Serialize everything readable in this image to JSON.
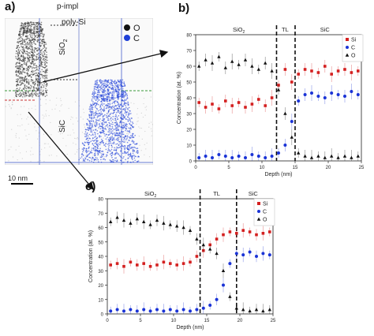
{
  "panels": {
    "a": {
      "label": "a)",
      "title": "p-impl",
      "layer_top": "poly-Si",
      "sio2": "SiO",
      "sio2_sub": "2",
      "sic": "SiC",
      "scale": "10 nm",
      "legend": [
        {
          "label": "O",
          "color": "#111111"
        },
        {
          "label": "C",
          "color": "#1e3fd8"
        }
      ]
    },
    "b": {
      "label": "b)"
    },
    "c": {
      "label": "c)"
    }
  },
  "colors": {
    "Si": "#d42020",
    "C": "#1a33d6",
    "O": "#111111"
  },
  "chart_data": [
    {
      "id": "b",
      "type": "scatter",
      "xlabel": "Depth (nm)",
      "ylabel": "Concentration (at. %)",
      "xlim": [
        0,
        25
      ],
      "ylim": [
        0,
        80
      ],
      "xticks": [
        0,
        5,
        10,
        15,
        20,
        25
      ],
      "yticks": [
        0,
        10,
        20,
        30,
        40,
        50,
        60,
        70,
        80
      ],
      "regions": [
        {
          "label": "SiO",
          "sub": "2",
          "x": 6.5
        },
        {
          "label": "TL",
          "x": 13.5
        },
        {
          "label": "SiC",
          "x": 19.5
        }
      ],
      "boundaries": [
        12.2,
        15.0
      ],
      "series": [
        {
          "name": "Si",
          "marker": "square",
          "x": [
            0.5,
            1.5,
            2.5,
            3.5,
            4.5,
            5.5,
            6.5,
            7.5,
            8.5,
            9.5,
            10.5,
            11.5,
            12.5,
            13.5,
            14.5,
            15.5,
            16.5,
            17.5,
            18.5,
            19.5,
            20.5,
            21.5,
            22.5,
            23.5,
            24.5
          ],
          "y": [
            37,
            34,
            36,
            33,
            38,
            35,
            37,
            34,
            36,
            39,
            35,
            40,
            48,
            58,
            50,
            55,
            58,
            57,
            56,
            60,
            55,
            57,
            58,
            56,
            57
          ]
        },
        {
          "name": "C",
          "marker": "circle",
          "x": [
            0.5,
            1.5,
            2.5,
            3.5,
            4.5,
            5.5,
            6.5,
            7.5,
            8.5,
            9.5,
            10.5,
            11.5,
            12.5,
            13.5,
            14.5,
            15.5,
            16.5,
            17.5,
            18.5,
            19.5,
            20.5,
            21.5,
            22.5,
            23.5,
            24.5
          ],
          "y": [
            2,
            3,
            2,
            4,
            3,
            2,
            3,
            2,
            4,
            3,
            2,
            3,
            5,
            10,
            25,
            38,
            42,
            43,
            41,
            40,
            43,
            42,
            41,
            44,
            42
          ]
        },
        {
          "name": "O",
          "marker": "triangle",
          "x": [
            0.5,
            1.5,
            2.5,
            3.5,
            4.5,
            5.5,
            6.5,
            7.5,
            8.5,
            9.5,
            10.5,
            11.5,
            12.5,
            13.5,
            14.5,
            15.5,
            16.5,
            17.5,
            18.5,
            19.5,
            20.5,
            21.5,
            22.5,
            23.5,
            24.5
          ],
          "y": [
            60,
            64,
            62,
            66,
            59,
            63,
            61,
            64,
            60,
            58,
            62,
            57,
            45,
            30,
            15,
            5,
            3,
            2,
            3,
            2,
            3,
            2,
            3,
            2,
            3
          ]
        }
      ],
      "legend": [
        "Si",
        "C",
        "O"
      ]
    },
    {
      "id": "c",
      "type": "scatter",
      "xlabel": "Depth (nm)",
      "ylabel": "Concentration (at. %)",
      "xlim": [
        0,
        25
      ],
      "ylim": [
        0,
        80
      ],
      "xticks": [
        0,
        5,
        10,
        15,
        20,
        25
      ],
      "yticks": [
        0,
        10,
        20,
        30,
        40,
        50,
        60,
        70,
        80
      ],
      "regions": [
        {
          "label": "SiO",
          "sub": "2",
          "x": 6.5
        },
        {
          "label": "TL",
          "x": 16.5
        },
        {
          "label": "SiC",
          "x": 22.0
        }
      ],
      "boundaries": [
        14.0,
        19.5
      ],
      "series": [
        {
          "name": "Si",
          "marker": "square",
          "x": [
            0.5,
            1.5,
            2.5,
            3.5,
            4.5,
            5.5,
            6.5,
            7.5,
            8.5,
            9.5,
            10.5,
            11.5,
            12.5,
            13.5,
            14.5,
            15.5,
            16.5,
            17.5,
            18.5,
            19.5,
            20.5,
            21.5,
            22.5,
            23.5,
            24.5
          ],
          "y": [
            34,
            35,
            33,
            36,
            34,
            35,
            33,
            34,
            36,
            35,
            34,
            35,
            36,
            40,
            44,
            48,
            52,
            55,
            57,
            56,
            58,
            57,
            55,
            56,
            57
          ]
        },
        {
          "name": "C",
          "marker": "circle",
          "x": [
            0.5,
            1.5,
            2.5,
            3.5,
            4.5,
            5.5,
            6.5,
            7.5,
            8.5,
            9.5,
            10.5,
            11.5,
            12.5,
            13.5,
            14.5,
            15.5,
            16.5,
            17.5,
            18.5,
            19.5,
            20.5,
            21.5,
            22.5,
            23.5,
            24.5
          ],
          "y": [
            2,
            3,
            2,
            3,
            2,
            3,
            2,
            3,
            2,
            3,
            2,
            3,
            2,
            3,
            4,
            6,
            10,
            20,
            35,
            42,
            41,
            43,
            40,
            42,
            41
          ]
        },
        {
          "name": "O",
          "marker": "triangle",
          "x": [
            0.5,
            1.5,
            2.5,
            3.5,
            4.5,
            5.5,
            6.5,
            7.5,
            8.5,
            9.5,
            10.5,
            11.5,
            12.5,
            13.5,
            14.5,
            15.5,
            16.5,
            17.5,
            18.5,
            19.5,
            20.5,
            21.5,
            22.5,
            23.5,
            24.5
          ],
          "y": [
            64,
            67,
            65,
            63,
            66,
            64,
            62,
            65,
            63,
            62,
            61,
            60,
            58,
            52,
            48,
            45,
            42,
            30,
            12,
            4,
            3,
            2,
            3,
            2,
            3
          ]
        }
      ],
      "legend": [
        "Si",
        "C",
        "O"
      ]
    }
  ]
}
